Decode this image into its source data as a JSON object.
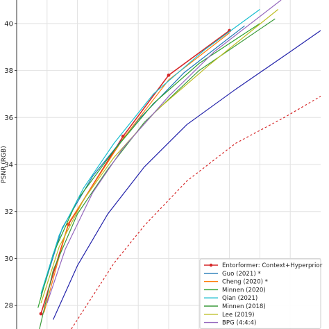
{
  "chart_data": {
    "type": "line",
    "title": "",
    "xlabel": "",
    "ylabel": "PSNR (RGB)",
    "xlim": [
      0.0,
      1.0
    ],
    "ylim": [
      27.0,
      41.0
    ],
    "yticks": [
      28,
      30,
      32,
      34,
      36,
      38,
      40
    ],
    "grid": true,
    "legend_position": "bottom-right",
    "series": [
      {
        "name": "Entorformer: Context+Hyperprior",
        "color": "#d62728",
        "marker": "dot",
        "dash": false,
        "x": [
          0.08,
          0.17,
          0.35,
          0.5,
          0.7
        ],
        "y": [
          27.65,
          31.45,
          35.2,
          37.8,
          39.7
        ]
      },
      {
        "name": "Guo (2021) *",
        "color": "#1f77b4",
        "marker": "none",
        "dash": false,
        "x": [
          0.08,
          0.15,
          0.25,
          0.4,
          0.55,
          0.75
        ],
        "y": [
          28.4,
          31.3,
          33.5,
          35.9,
          37.9,
          39.9
        ]
      },
      {
        "name": "Cheng (2020) *",
        "color": "#ff7f0e",
        "marker": "none",
        "dash": false,
        "x": [
          0.09,
          0.17,
          0.35,
          0.5,
          0.7
        ],
        "y": [
          27.7,
          31.5,
          35.1,
          37.6,
          39.6
        ]
      },
      {
        "name": "Minnen (2020)",
        "color": "#2ca02c",
        "marker": "none",
        "dash": false,
        "x": [
          0.07,
          0.12,
          0.2,
          0.32,
          0.45,
          0.6,
          0.8
        ],
        "y": [
          27.9,
          30.2,
          32.5,
          34.6,
          36.6,
          38.3,
          40.0
        ]
      },
      {
        "name": "Qian (2021)",
        "color": "#17becf",
        "marker": "none",
        "dash": false,
        "x": [
          0.08,
          0.14,
          0.22,
          0.32,
          0.45,
          0.62,
          0.8
        ],
        "y": [
          28.5,
          31.0,
          33.0,
          34.9,
          37.0,
          38.9,
          40.6
        ]
      },
      {
        "name": "Minnen (2018)",
        "color": "#3a9a3a",
        "marker": "none",
        "dash": false,
        "x": [
          0.075,
          0.12,
          0.2,
          0.3,
          0.42,
          0.6,
          0.85
        ],
        "y": [
          27.0,
          29.5,
          31.9,
          33.8,
          35.8,
          38.0,
          40.2
        ]
      },
      {
        "name": "Lee (2019)",
        "color": "#bcbd22",
        "marker": "none",
        "dash": false,
        "x": [
          0.08,
          0.14,
          0.22,
          0.32,
          0.46,
          0.63,
          0.86
        ],
        "y": [
          28.1,
          30.5,
          32.5,
          34.3,
          36.3,
          38.2,
          40.6
        ]
      },
      {
        "name": "BPG (4:4:4)",
        "color": "#9467bd",
        "marker": "none",
        "dash": false,
        "x": [
          0.1,
          0.16,
          0.25,
          0.35,
          0.5,
          0.65,
          0.87
        ],
        "y": [
          28.1,
          30.4,
          32.8,
          34.7,
          36.9,
          38.8,
          41.0
        ]
      },
      {
        "name": "",
        "color": "#2222aa",
        "marker": "none",
        "dash": false,
        "x": [
          0.12,
          0.2,
          0.3,
          0.42,
          0.56,
          0.72,
          0.9,
          1.0
        ],
        "y": [
          27.4,
          29.7,
          31.9,
          33.9,
          35.7,
          37.2,
          38.8,
          39.7
        ]
      },
      {
        "name": "",
        "color": "#d62728",
        "marker": "none",
        "dash": true,
        "x": [
          0.18,
          0.24,
          0.32,
          0.42,
          0.56,
          0.72,
          0.88,
          1.0
        ],
        "y": [
          27.0,
          28.2,
          29.8,
          31.4,
          33.3,
          34.9,
          36.0,
          36.9
        ]
      }
    ]
  }
}
